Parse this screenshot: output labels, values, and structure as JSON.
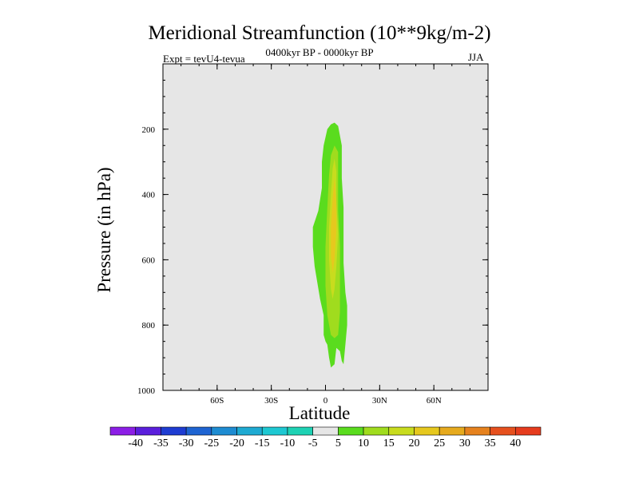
{
  "chart_data": {
    "type": "contour",
    "title": "Meridional Streamfunction (10**9kg/m-2)",
    "subtitle_left": "Expt = tevU4-tevua",
    "subtitle_center": "0400kyr BP - 0000kyr BP",
    "subtitle_right": "JJA",
    "xlabel": "Latitude",
    "ylabel": "Pressure (in hPa)",
    "xlim": [
      -90,
      90
    ],
    "ylim": [
      1000,
      0
    ],
    "xticks": [
      {
        "value": -60,
        "label": "60S"
      },
      {
        "value": -30,
        "label": "30S"
      },
      {
        "value": 0,
        "label": "0"
      },
      {
        "value": 30,
        "label": "30N"
      },
      {
        "value": 60,
        "label": "60N"
      }
    ],
    "yticks": [
      {
        "value": 200,
        "label": "200"
      },
      {
        "value": 400,
        "label": "400"
      },
      {
        "value": 600,
        "label": "600"
      },
      {
        "value": 800,
        "label": "800"
      },
      {
        "value": 1000,
        "label": "1000"
      }
    ],
    "background_color": "#e6e6e6",
    "colorbar": {
      "levels": [
        -40,
        -35,
        -30,
        -25,
        -20,
        -15,
        -10,
        -5,
        5,
        10,
        15,
        20,
        25,
        30,
        35,
        40
      ],
      "labels": [
        "-40",
        "-35",
        "-30",
        "-25",
        "-20",
        "-15",
        "-10",
        "-5",
        "5",
        "10",
        "15",
        "20",
        "25",
        "30",
        "35",
        "40"
      ],
      "colors": [
        "#8c1ee6",
        "#5a1edc",
        "#1e3cd2",
        "#1e64d2",
        "#1e8cd2",
        "#1eaad2",
        "#1ec8d2",
        "#1ed2b4",
        "#e6e6e6",
        "#5adc1e",
        "#a0dc1e",
        "#c8dc1e",
        "#e6c81e",
        "#e6aa1e",
        "#e6821e",
        "#e6501e",
        "#e63c1e"
      ]
    },
    "contours": [
      {
        "level": 5,
        "color": "#5adc1e",
        "polygon": [
          [
            5,
            180
          ],
          [
            7,
            190
          ],
          [
            9,
            250
          ],
          [
            9,
            350
          ],
          [
            10,
            440
          ],
          [
            10,
            610
          ],
          [
            11,
            700
          ],
          [
            12,
            740
          ],
          [
            12,
            800
          ],
          [
            11,
            860
          ],
          [
            10,
            920
          ],
          [
            9,
            910
          ],
          [
            8,
            880
          ],
          [
            6,
            870
          ],
          [
            5,
            920
          ],
          [
            3,
            930
          ],
          [
            2,
            900
          ],
          [
            1,
            860
          ],
          [
            0,
            850
          ],
          [
            -1,
            830
          ],
          [
            -1,
            770
          ],
          [
            -3,
            720
          ],
          [
            -6,
            620
          ],
          [
            -7,
            560
          ],
          [
            -7,
            500
          ],
          [
            -4,
            450
          ],
          [
            -2,
            380
          ],
          [
            -2,
            300
          ],
          [
            -1,
            250
          ],
          [
            1,
            200
          ],
          [
            3,
            185
          ]
        ]
      },
      {
        "level": 10,
        "color": "#a0dc1e",
        "polygon": [
          [
            5,
            250
          ],
          [
            7,
            270
          ],
          [
            7,
            350
          ],
          [
            7,
            450
          ],
          [
            8,
            560
          ],
          [
            8,
            660
          ],
          [
            8,
            760
          ],
          [
            7,
            830
          ],
          [
            5,
            840
          ],
          [
            3,
            830
          ],
          [
            1,
            770
          ],
          [
            0,
            680
          ],
          [
            0,
            560
          ],
          [
            1,
            440
          ],
          [
            2,
            340
          ],
          [
            3,
            280
          ]
        ]
      },
      {
        "level": 15,
        "color": "#c8dc1e",
        "polygon": [
          [
            5,
            290
          ],
          [
            6,
            330
          ],
          [
            6,
            420
          ],
          [
            7,
            520
          ],
          [
            6,
            620
          ],
          [
            5,
            690
          ],
          [
            4,
            720
          ],
          [
            3,
            690
          ],
          [
            2,
            600
          ],
          [
            2,
            500
          ],
          [
            3,
            400
          ],
          [
            4,
            320
          ]
        ]
      },
      {
        "level": 20,
        "color": "#e6c81e",
        "polygon": [
          [
            5,
            350
          ],
          [
            6,
            420
          ],
          [
            6,
            510
          ],
          [
            5,
            600
          ],
          [
            4,
            640
          ],
          [
            3,
            590
          ],
          [
            3,
            500
          ],
          [
            4,
            410
          ]
        ]
      }
    ]
  }
}
